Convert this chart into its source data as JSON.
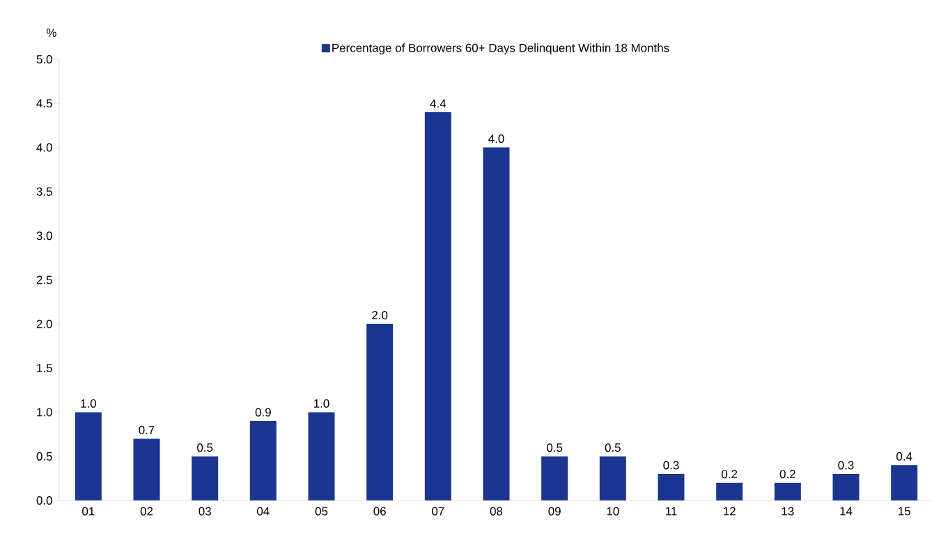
{
  "chart_data": {
    "type": "bar",
    "ylabel": "%",
    "categories": [
      "01",
      "02",
      "03",
      "04",
      "05",
      "06",
      "07",
      "08",
      "09",
      "10",
      "11",
      "12",
      "13",
      "14",
      "15"
    ],
    "series": [
      {
        "name": "Percentage of Borrowers 60+ Days Delinquent Within 18 Months",
        "color": "#1c3591",
        "values": [
          1.0,
          0.7,
          0.5,
          0.9,
          1.0,
          2.0,
          4.4,
          4.0,
          0.5,
          0.5,
          0.3,
          0.2,
          0.2,
          0.3,
          0.4
        ],
        "value_labels": [
          "1.0",
          "0.7",
          "0.5",
          "0.9",
          "1.0",
          "2.0",
          "4.4",
          "4.0",
          "0.5",
          "0.5",
          "0.3",
          "0.2",
          "0.2",
          "0.3",
          "0.4"
        ]
      }
    ],
    "ylim": [
      0,
      5
    ],
    "yticks": [
      {
        "value": 0,
        "label": "0.0"
      },
      {
        "value": 0.5,
        "label": "0.5"
      },
      {
        "value": 1,
        "label": "1.0"
      },
      {
        "value": 1.5,
        "label": "1.5"
      },
      {
        "value": 2,
        "label": "2.0"
      },
      {
        "value": 2.5,
        "label": "2.5"
      },
      {
        "value": 3,
        "label": "3.0"
      },
      {
        "value": 3.5,
        "label": "3.5"
      },
      {
        "value": 4,
        "label": "4.0"
      },
      {
        "value": 4.5,
        "label": "4.5"
      },
      {
        "value": 5,
        "label": "5.0"
      }
    ],
    "legend": "top",
    "grid": false
  }
}
